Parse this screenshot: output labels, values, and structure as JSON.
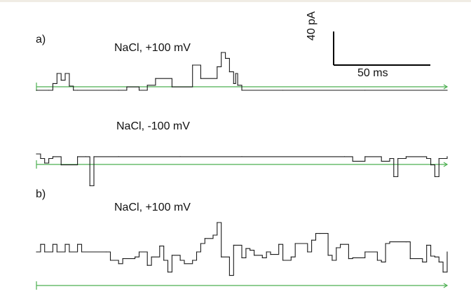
{
  "figure": {
    "panels": [
      {
        "label": "a)"
      },
      {
        "label": "b)"
      }
    ],
    "conditions": [
      {
        "text": "NaCl, +100 mV"
      },
      {
        "text": "NaCl, -100 mV"
      },
      {
        "text": "NaCl, +100 mV"
      }
    ],
    "scale_bar": {
      "current_label": "40 pA",
      "time_label": "50 ms",
      "current_value": 40,
      "current_unit": "pA",
      "time_value": 50,
      "time_unit": "ms"
    },
    "colors": {
      "trace": "#1a1a1a",
      "baseline": "#4caf50",
      "background": "#ffffff"
    }
  },
  "chart_data": {
    "type": "line",
    "traces": [
      {
        "panel": "a",
        "condition": "NaCl, +100 mV",
        "x": [
          0,
          3,
          4,
          5,
          6,
          7,
          8,
          9,
          10,
          20,
          22,
          25,
          27,
          29,
          33,
          38,
          40,
          44,
          45,
          46,
          47,
          48,
          48.5,
          49,
          50,
          60,
          80,
          100
        ],
        "y": [
          0,
          0,
          8,
          20,
          12,
          20,
          5,
          0,
          0,
          0,
          4,
          0,
          6,
          14,
          4,
          30,
          14,
          28,
          45,
          38,
          22,
          8,
          20,
          6,
          0,
          0,
          0,
          0
        ]
      },
      {
        "panel": "a",
        "condition": "NaCl, -100 mV",
        "x": [
          0,
          1,
          2,
          3,
          4,
          6,
          10,
          12,
          13,
          14,
          20,
          35,
          50,
          75,
          77,
          80,
          84,
          86,
          87,
          88,
          90,
          95,
          96,
          97,
          98,
          100
        ],
        "y": [
          0,
          -5,
          -10,
          -5,
          -3,
          -12,
          -3,
          -3,
          -35,
          -3,
          -3,
          -3,
          -3,
          -3,
          -8,
          -3,
          -8,
          -5,
          -25,
          -5,
          -3,
          -5,
          -12,
          -25,
          -5,
          -3
        ]
      },
      {
        "panel": "b",
        "condition": "NaCl, +100 mV",
        "x": [
          0,
          1,
          2,
          4,
          5,
          7,
          8,
          10,
          11,
          17,
          18,
          20,
          21,
          24,
          25,
          27,
          28,
          30,
          31,
          32,
          33,
          35,
          36,
          38,
          39,
          40,
          41,
          43,
          44,
          45,
          47,
          48,
          50,
          51,
          52,
          53,
          55,
          56,
          57,
          59,
          60,
          62,
          63,
          66,
          67,
          68,
          69,
          71,
          72,
          73,
          74,
          76,
          77,
          80,
          81,
          83,
          84,
          85,
          86,
          90,
          91,
          94,
          95,
          96,
          97,
          98,
          99,
          100
        ],
        "y": [
          0,
          9,
          0,
          9,
          0,
          9,
          0,
          9,
          0,
          0,
          -10,
          -14,
          -8,
          -6,
          0,
          -16,
          -6,
          7,
          -10,
          -24,
          -4,
          -10,
          -14,
          -10,
          0,
          10,
          16,
          20,
          35,
          -6,
          -28,
          8,
          -7,
          4,
          2,
          -4,
          -7,
          0,
          -3,
          9,
          -10,
          -6,
          10,
          0,
          14,
          22,
          22,
          -4,
          -10,
          5,
          9,
          -8,
          -7,
          0,
          0,
          -10,
          -12,
          10,
          12,
          12,
          -8,
          -12,
          8,
          -5,
          -6,
          -12,
          -24,
          0
        ]
      }
    ],
    "scale_bar": {
      "current": 40,
      "current_unit": "pA",
      "time": 50,
      "time_unit": "ms"
    },
    "title": "",
    "xlabel": "",
    "ylabel": "",
    "grid": false,
    "legend": "none"
  }
}
